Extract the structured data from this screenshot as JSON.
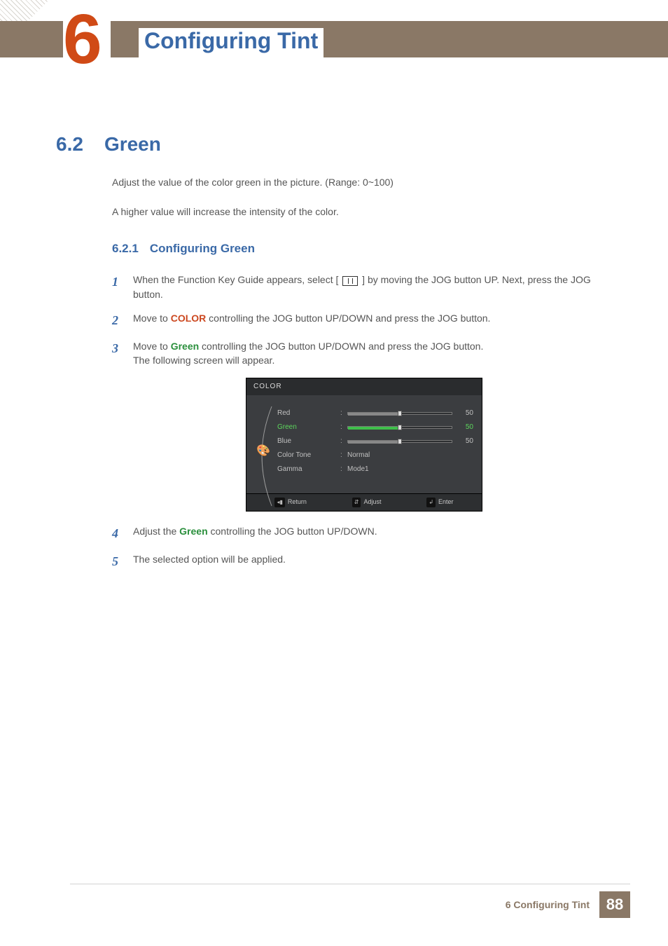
{
  "chapter": {
    "number": "6",
    "title": "Configuring Tint"
  },
  "section": {
    "number": "6.2",
    "title": "Green"
  },
  "intro": {
    "p1": "Adjust the value of the color green in the picture. (Range: 0~100)",
    "p2": "A higher value will increase the intensity of the color."
  },
  "subsection": {
    "number": "6.2.1",
    "title": "Configuring Green"
  },
  "steps": {
    "s1_a": "When the Function Key Guide appears, select  [ ",
    "s1_b": " ]  by moving the JOG button UP. Next, press the JOG button.",
    "s2_a": "Move to ",
    "s2_kw": "COLOR",
    "s2_b": " controlling the JOG button UP/DOWN and press the JOG button.",
    "s3_a": "Move to ",
    "s3_kw": "Green",
    "s3_b": " controlling the JOG button UP/DOWN and press the JOG button.",
    "s3_c": "The following screen will appear.",
    "s4_a": "Adjust the ",
    "s4_kw": "Green",
    "s4_b": " controlling the JOG button UP/DOWN.",
    "s5": "The selected option will be applied."
  },
  "osd": {
    "title": "COLOR",
    "bg_color": "#3b3d40",
    "header_bg": "#2a2c2e",
    "footer_bg": "#2d2f31",
    "selected_color": "#5cd65c",
    "text_color": "#c0c0c0",
    "items": [
      {
        "label": "Red",
        "type": "slider",
        "value": 50,
        "max": 100,
        "selected": false
      },
      {
        "label": "Green",
        "type": "slider",
        "value": 50,
        "max": 100,
        "selected": true
      },
      {
        "label": "Blue",
        "type": "slider",
        "value": 50,
        "max": 100,
        "selected": false
      },
      {
        "label": "Color Tone",
        "type": "text",
        "value": "Normal"
      },
      {
        "label": "Gamma",
        "type": "text",
        "value": "Mode1"
      }
    ],
    "footer": {
      "return": "Return",
      "adjust": "Adjust",
      "enter": "Enter"
    }
  },
  "footer": {
    "text": "6 Configuring Tint",
    "page": "88"
  },
  "palette": {
    "accent_blue": "#3a69a7",
    "accent_orange": "#cc4820",
    "accent_green": "#2a8f3c",
    "band_brown": "#8a7866",
    "chapter_orange": "#d04a16"
  }
}
